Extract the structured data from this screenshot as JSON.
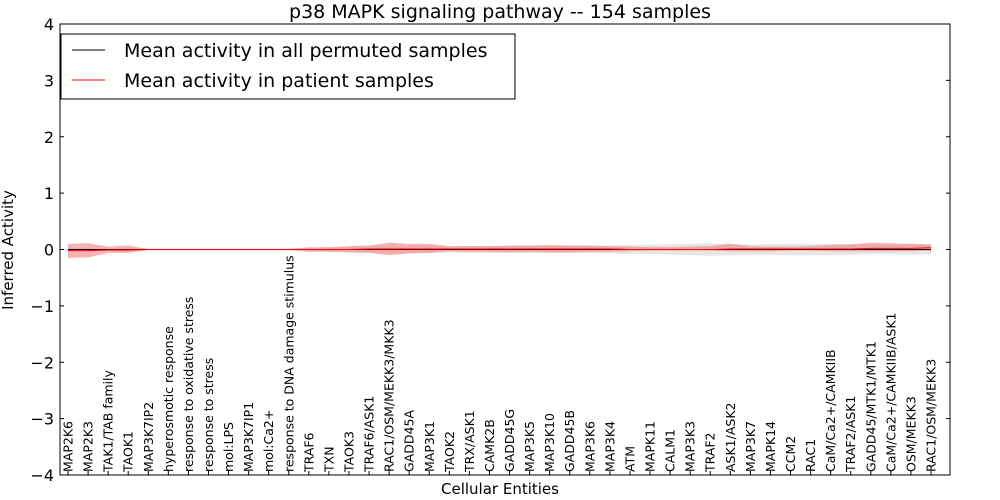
{
  "chart_data": {
    "type": "line",
    "title": "p38 MAPK signaling pathway -- 154 samples",
    "xlabel": "Cellular Entities",
    "ylabel": "Inferred Activity",
    "ylim": [
      -4,
      4
    ],
    "yticks": [
      4,
      3,
      2,
      1,
      0,
      -1,
      -2,
      -3,
      -4
    ],
    "ytick_labels": [
      "4",
      "3",
      "2",
      "1",
      "0",
      "−1",
      "−2",
      "−3",
      "−4"
    ],
    "categories": [
      "MAP2K6",
      "MAP2K3",
      "TAK1/TAB family",
      "TAOK1",
      "MAP3K7IP2",
      "hyperosmotic response",
      "response to oxidative stress",
      "response to stress",
      "mol:LPS",
      "MAP3K7IP1",
      "mol:Ca2+",
      "response to DNA damage stimulus",
      "TRAF6",
      "TXN",
      "TAOK3",
      "TRAF6/ASK1",
      "RAC1/OSM/MEKK3/MKK3",
      "GADD45A",
      "MAP3K1",
      "TAOK2",
      "TRX/ASK1",
      "CAMK2B",
      "GADD45G",
      "MAP3K5",
      "MAP3K10",
      "GADD45B",
      "MAP3K6",
      "MAP3K4",
      "ATM",
      "MAPK11",
      "CALM1",
      "MAP3K3",
      "TRAF2",
      "ASK1/ASK2",
      "MAP3K7",
      "MAPK14",
      "CCM2",
      "RAC1",
      "CaM/Ca2+/CAMKIIB",
      "TRAF2/ASK1",
      "GADD45/MTK1/MTK1",
      "CaM/Ca2+/CAMKIIB/ASK1",
      "OSM/MEKK3",
      "RAC1/OSM/MEKK3"
    ],
    "legend_position": "top-left",
    "series": [
      {
        "name": "Mean activity in all permuted samples",
        "color": "#000000",
        "band_color": "#c8c8c8",
        "values": [
          0,
          0,
          0,
          0,
          0,
          0,
          0,
          0,
          0,
          0,
          0,
          0,
          0,
          0,
          0,
          0,
          0,
          0,
          0,
          0,
          0,
          0,
          0,
          0,
          0,
          0,
          0,
          0,
          0,
          0,
          0,
          0,
          0,
          0,
          0,
          0,
          0,
          0,
          0,
          0,
          0,
          0,
          0,
          0
        ],
        "band_lower": [
          -0.02,
          -0.02,
          -0.02,
          -0.02,
          -0.02,
          -0.02,
          -0.02,
          -0.02,
          -0.02,
          -0.02,
          -0.02,
          -0.02,
          -0.03,
          -0.04,
          -0.04,
          -0.05,
          -0.06,
          -0.06,
          -0.06,
          -0.05,
          -0.06,
          -0.06,
          -0.06,
          -0.06,
          -0.06,
          -0.06,
          -0.06,
          -0.07,
          -0.08,
          -0.08,
          -0.09,
          -0.1,
          -0.11,
          -0.1,
          -0.09,
          -0.09,
          -0.1,
          -0.1,
          -0.1,
          -0.09,
          -0.08,
          -0.08,
          -0.09,
          -0.09
        ],
        "band_upper": [
          0.02,
          0.02,
          0.02,
          0.02,
          0.02,
          0.02,
          0.02,
          0.02,
          0.02,
          0.02,
          0.02,
          0.02,
          0.03,
          0.04,
          0.04,
          0.05,
          0.06,
          0.06,
          0.06,
          0.05,
          0.06,
          0.06,
          0.06,
          0.06,
          0.06,
          0.06,
          0.06,
          0.07,
          0.08,
          0.08,
          0.09,
          0.1,
          0.11,
          0.1,
          0.09,
          0.09,
          0.1,
          0.1,
          0.1,
          0.09,
          0.08,
          0.08,
          0.09,
          0.09
        ]
      },
      {
        "name": "Mean activity in patient samples",
        "color": "#ff0000",
        "band_color": "#f08080",
        "values": [
          -0.02,
          -0.02,
          -0.01,
          -0.01,
          0,
          0,
          0,
          0,
          0,
          0,
          0,
          0,
          0,
          0,
          0,
          0.01,
          0.01,
          0.01,
          0.01,
          0.01,
          0.01,
          0.01,
          0.01,
          0.01,
          0.01,
          0.01,
          0.01,
          0.01,
          0,
          0,
          0,
          0,
          0,
          0.01,
          0.01,
          0.01,
          0.01,
          0.01,
          0.01,
          0.01,
          0.02,
          0.02,
          0.02,
          0.03
        ],
        "band_lower": [
          -0.15,
          -0.14,
          -0.06,
          -0.06,
          -0.01,
          0,
          0,
          0,
          0,
          0,
          0,
          -0.01,
          -0.04,
          -0.04,
          -0.05,
          -0.06,
          -0.1,
          -0.07,
          -0.06,
          -0.03,
          -0.04,
          -0.04,
          -0.05,
          -0.04,
          -0.05,
          -0.05,
          -0.04,
          -0.04,
          -0.03,
          -0.02,
          -0.02,
          -0.02,
          -0.02,
          -0.03,
          -0.03,
          -0.03,
          -0.02,
          -0.02,
          -0.03,
          -0.03,
          -0.03,
          -0.03,
          -0.03,
          -0.02
        ],
        "band_upper": [
          0.1,
          0.11,
          0.05,
          0.07,
          0.01,
          0,
          0,
          0,
          0,
          0,
          0,
          0.01,
          0.04,
          0.04,
          0.06,
          0.07,
          0.12,
          0.1,
          0.1,
          0.06,
          0.06,
          0.06,
          0.07,
          0.07,
          0.08,
          0.07,
          0.07,
          0.06,
          0.05,
          0.04,
          0.04,
          0.05,
          0.06,
          0.1,
          0.06,
          0.05,
          0.05,
          0.06,
          0.08,
          0.09,
          0.12,
          0.11,
          0.1,
          0.09
        ]
      }
    ]
  }
}
